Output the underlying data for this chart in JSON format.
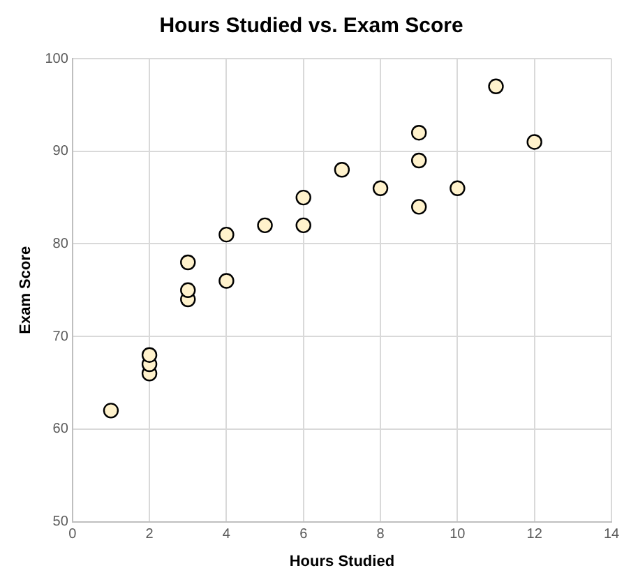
{
  "chart_data": {
    "type": "scatter",
    "title": "Hours Studied vs. Exam Score",
    "xlabel": "Hours Studied",
    "ylabel": "Exam Score",
    "series": [
      {
        "color": "#fff2cc",
        "x": [
          1,
          2,
          2,
          2,
          3,
          3,
          3,
          4,
          4,
          5,
          6,
          6,
          7,
          8,
          9,
          9,
          9,
          10,
          11,
          12
        ],
        "values": [
          62,
          66,
          67,
          68,
          74,
          75,
          78,
          76,
          81,
          82,
          82,
          85,
          88,
          86,
          84,
          89,
          92,
          86,
          97,
          91
        ]
      }
    ],
    "xlim": [
      0,
      14
    ],
    "xticks": [
      0,
      2,
      4,
      6,
      8,
      10,
      12,
      14
    ],
    "ylim": [
      50,
      100
    ],
    "yticks": [
      50,
      60,
      70,
      80,
      90,
      100
    ],
    "grid": true,
    "legend": false,
    "marker": "circle"
  }
}
